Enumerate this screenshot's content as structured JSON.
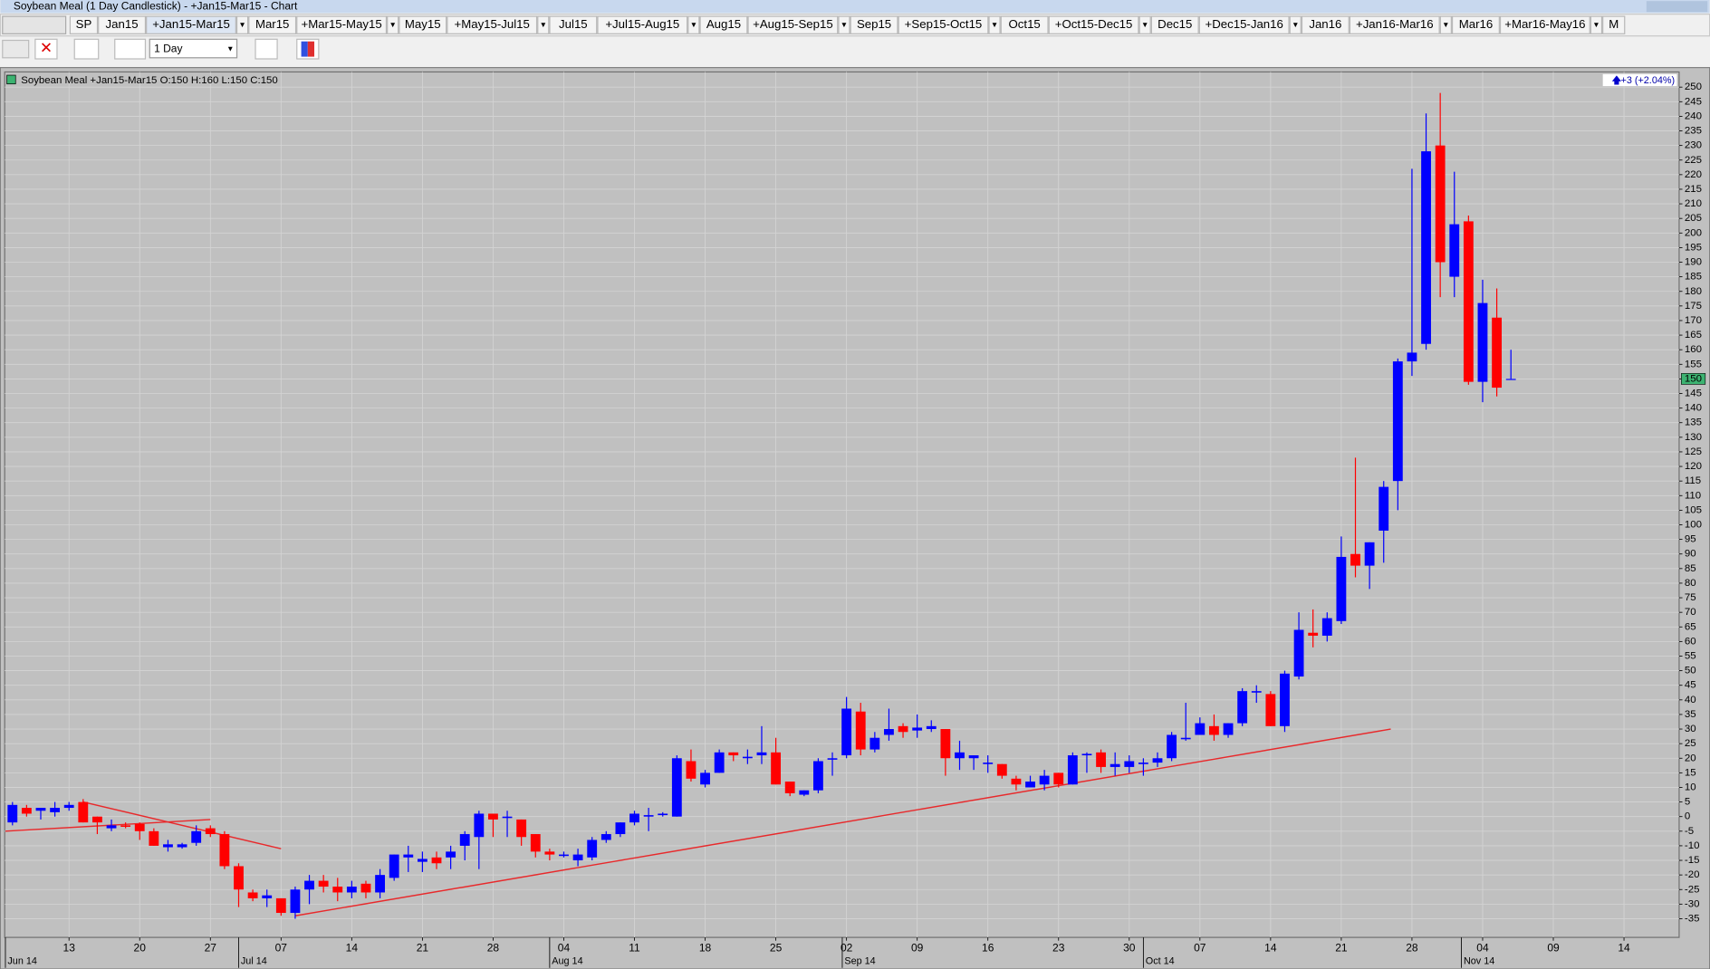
{
  "window": {
    "title": "Soybean Meal (1 Day Candlestick) - +Jan15-Mar15 - Chart",
    "tabs": [
      "SP",
      "Jan15",
      "+Jan15-Mar15",
      "Mar15",
      "+Mar15-May15",
      "May15",
      "+May15-Jul15",
      "Jul15",
      "+Jul15-Aug15",
      "Aug15",
      "+Aug15-Sep15",
      "Sep15",
      "+Sep15-Oct15",
      "Oct15",
      "+Oct15-Dec15",
      "Dec15",
      "+Dec15-Jan16",
      "Jan16",
      "+Jan16-Mar16",
      "Mar16",
      "+Mar16-May16",
      "M"
    ],
    "interval": "1 Day"
  },
  "chart_data": {
    "type": "candlestick",
    "legend_text": "Soybean Meal +Jan15-Mar15 O:150 H:160 L:150 C:150",
    "change_label": "+3 (+2.04%)",
    "up_color": "#0000ff",
    "down_color": "#ff0000",
    "trendline_color": "#e8292b",
    "last_price_color": "#3cb371",
    "open": [
      -2,
      3,
      2,
      1.5,
      3,
      5,
      0,
      -4,
      -3,
      -2.5,
      -5,
      -10.5,
      -10.5,
      -9,
      -4,
      -6,
      -17,
      -26,
      -28,
      -28,
      -33,
      -25,
      -22,
      -24,
      -26,
      -23,
      -26,
      -21,
      -14,
      -15.5,
      -14,
      -14,
      -10,
      -7,
      1,
      -0.5,
      -1,
      -6,
      -12,
      -13.5,
      -15,
      -14,
      -8,
      -6,
      -2,
      0,
      0.5,
      0,
      19,
      11,
      15,
      22,
      20,
      21,
      22,
      12,
      7.5,
      9,
      19.5,
      21,
      36,
      23,
      28,
      31,
      29.5,
      30,
      30,
      20,
      20,
      18,
      18,
      13,
      10,
      11,
      15,
      11,
      21,
      22,
      17,
      17,
      18,
      18.5,
      20,
      26.5,
      28,
      31,
      28,
      32,
      42.5,
      42,
      31,
      48,
      63,
      62,
      67,
      90,
      86,
      98,
      115,
      156,
      162,
      230,
      185,
      204,
      149,
      171,
      150
    ],
    "high": [
      5,
      4,
      3,
      5,
      5,
      6,
      0,
      -1,
      -2,
      -2,
      -4,
      -8,
      -9,
      -3,
      -3,
      -5,
      -16,
      -25,
      -25,
      -28,
      -24,
      -20,
      -20,
      -21,
      -22,
      -22,
      -18,
      -13,
      -10,
      -12,
      -12,
      -10,
      -5,
      2,
      1,
      2,
      -1,
      -6,
      -11,
      -12,
      -11,
      -7,
      -5,
      -2,
      2,
      3,
      1.5,
      21,
      23,
      16,
      23,
      22,
      23,
      31,
      27,
      12,
      9,
      20,
      22,
      41,
      39,
      29,
      37,
      32,
      35,
      33,
      30,
      26,
      21,
      21,
      18,
      14,
      14,
      16,
      15,
      22,
      22,
      23,
      22,
      21,
      20,
      22,
      29,
      39,
      34,
      35,
      32,
      44,
      45,
      43,
      50,
      70,
      71,
      70,
      96,
      123,
      94,
      115,
      157,
      222,
      241,
      248,
      221,
      206,
      184,
      181,
      160
    ],
    "low": [
      -3,
      0,
      -1,
      0,
      2,
      -2,
      -6,
      -5,
      -4,
      -8,
      -10,
      -12,
      -11,
      -10,
      -7,
      -18,
      -31,
      -29,
      -31,
      -34,
      -35,
      -30,
      -26,
      -29,
      -28,
      -28,
      -28,
      -22,
      -19,
      -19,
      -18,
      -18,
      -15,
      -18,
      -7,
      -7,
      -10,
      -14,
      -15,
      -14,
      -17,
      -15,
      -9,
      -7,
      -3,
      -5,
      0,
      0,
      12,
      10,
      15,
      19,
      18,
      18,
      11,
      7,
      7,
      8,
      14,
      20,
      21,
      22,
      26,
      27,
      27,
      29,
      14,
      16,
      16,
      15,
      13,
      9,
      10,
      9,
      10,
      11,
      15,
      15,
      14,
      15,
      14,
      17,
      19,
      26,
      28,
      26,
      27,
      31,
      39,
      31,
      29,
      47,
      58,
      60,
      66,
      82,
      78,
      87,
      105,
      151,
      160,
      178,
      178,
      148,
      142,
      144,
      150
    ],
    "close": [
      4,
      1,
      3,
      3,
      4,
      -2,
      -2,
      -3,
      -3.5,
      -5,
      -10,
      -9.5,
      -9.5,
      -5,
      -6,
      -17,
      -25,
      -28,
      -27,
      -33,
      -25,
      -22,
      -24,
      -26,
      -24,
      -26,
      -20,
      -13,
      -13,
      -14.5,
      -16,
      -12,
      -6,
      1,
      -1,
      0,
      -7,
      -12,
      -13,
      -13,
      -13,
      -8,
      -6,
      -2,
      1,
      0.5,
      1,
      20,
      13,
      15,
      22,
      21,
      20.5,
      22,
      11,
      8,
      9,
      19,
      20,
      37,
      23,
      27,
      30,
      29,
      30.5,
      31,
      20,
      22,
      21,
      18.5,
      14,
      11,
      12,
      14,
      11,
      21,
      21.5,
      17,
      18,
      19,
      18.5,
      20,
      28,
      27,
      32,
      28,
      32,
      43,
      43,
      31,
      49,
      64,
      62,
      68,
      89,
      86,
      94,
      113,
      156,
      159,
      228,
      190,
      203,
      149,
      176,
      147,
      150
    ],
    "trendlines": [
      {
        "x": [
          -0.5,
          14
        ],
        "y": [
          -5,
          -1
        ]
      },
      {
        "x": [
          5,
          19
        ],
        "y": [
          5,
          -11
        ]
      },
      {
        "x": [
          20,
          97.5
        ],
        "y": [
          -34,
          30
        ]
      }
    ],
    "xlim": [
      -0.55,
      117.9
    ],
    "ylim": [
      -41.4,
      255.2
    ],
    "yticks": [
      -35,
      -30,
      -25,
      -20,
      -15,
      -10,
      -5,
      0,
      5,
      10,
      15,
      20,
      25,
      30,
      35,
      40,
      45,
      50,
      55,
      60,
      65,
      70,
      75,
      80,
      85,
      90,
      95,
      100,
      105,
      110,
      115,
      120,
      125,
      130,
      135,
      140,
      145,
      150,
      155,
      160,
      165,
      170,
      175,
      180,
      185,
      190,
      195,
      200,
      205,
      210,
      215,
      220,
      225,
      230,
      235,
      240,
      245,
      250
    ],
    "xticks": [
      {
        "value": 4,
        "label": "13"
      },
      {
        "value": 9,
        "label": "20"
      },
      {
        "value": 14,
        "label": "27"
      },
      {
        "value": 19,
        "label": "07"
      },
      {
        "value": 24,
        "label": "14"
      },
      {
        "value": 29,
        "label": "21"
      },
      {
        "value": 34,
        "label": "28"
      },
      {
        "value": 39,
        "label": "04"
      },
      {
        "value": 44,
        "label": "11"
      },
      {
        "value": 49,
        "label": "18"
      },
      {
        "value": 54,
        "label": "25"
      },
      {
        "value": 59,
        "label": "02"
      },
      {
        "value": 64,
        "label": "09"
      },
      {
        "value": 69,
        "label": "16"
      },
      {
        "value": 74,
        "label": "23"
      },
      {
        "value": 79,
        "label": "30"
      },
      {
        "value": 84,
        "label": "07"
      },
      {
        "value": 89,
        "label": "14"
      },
      {
        "value": 94,
        "label": "21"
      },
      {
        "value": 99,
        "label": "28"
      },
      {
        "value": 104,
        "label": "04"
      },
      {
        "value": 109,
        "label": "09"
      },
      {
        "value": 114,
        "label": "14"
      }
    ],
    "month_ticks": [
      {
        "value": -0.5,
        "label": "Jun 14"
      },
      {
        "value": 16,
        "label": "Jul 14"
      },
      {
        "value": 38,
        "label": "Aug 14"
      },
      {
        "value": 58.7,
        "label": "Sep 14"
      },
      {
        "value": 80,
        "label": "Oct 14"
      },
      {
        "value": 102.5,
        "label": "Nov 14"
      }
    ],
    "grid": true
  }
}
